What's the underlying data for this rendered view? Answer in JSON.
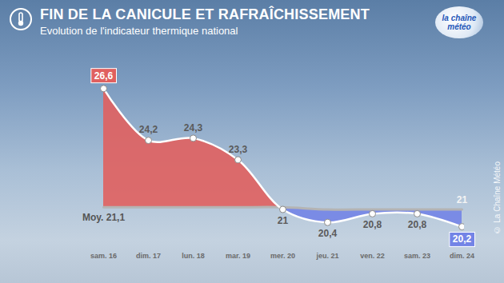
{
  "chart_data": {
    "type": "area",
    "title": "FIN DE LA CANICULE ET RAFRAÎCHISSEMENT",
    "subtitle": "Evolution de l'indicateur thermique national",
    "source": "© La Chaîne Météo",
    "logo": "la chaîne météo",
    "categories": [
      "sam. 16",
      "dim. 17",
      "lun. 18",
      "mar. 19",
      "mer. 20",
      "jeu. 21",
      "ven. 22",
      "sam. 23",
      "dim. 24"
    ],
    "series": [
      {
        "values": [
          26.6,
          24.2,
          24.3,
          23.3,
          21,
          20.4,
          20.8,
          20.8,
          20.2
        ],
        "value_labels": [
          "26,6",
          "24,2",
          "24,3",
          "23,3",
          "21",
          "20,4",
          "20,8",
          "20,8",
          "20,2"
        ],
        "colors": [
          "#e0605f",
          "#7384e6"
        ]
      },
      {
        "name": "Moy.",
        "values": [
          21.1,
          21.1,
          21.1,
          21.1,
          21.1,
          21.0,
          21.0,
          21.0,
          21.0
        ],
        "value_labels": [
          "21,1",
          null,
          null,
          null,
          null,
          null,
          null,
          null,
          "21"
        ],
        "color": "#b4b4b4"
      }
    ],
    "ylim": [
      19.5,
      27.5
    ],
    "data_labels": true,
    "tick_labels": "x",
    "grid": false
  }
}
